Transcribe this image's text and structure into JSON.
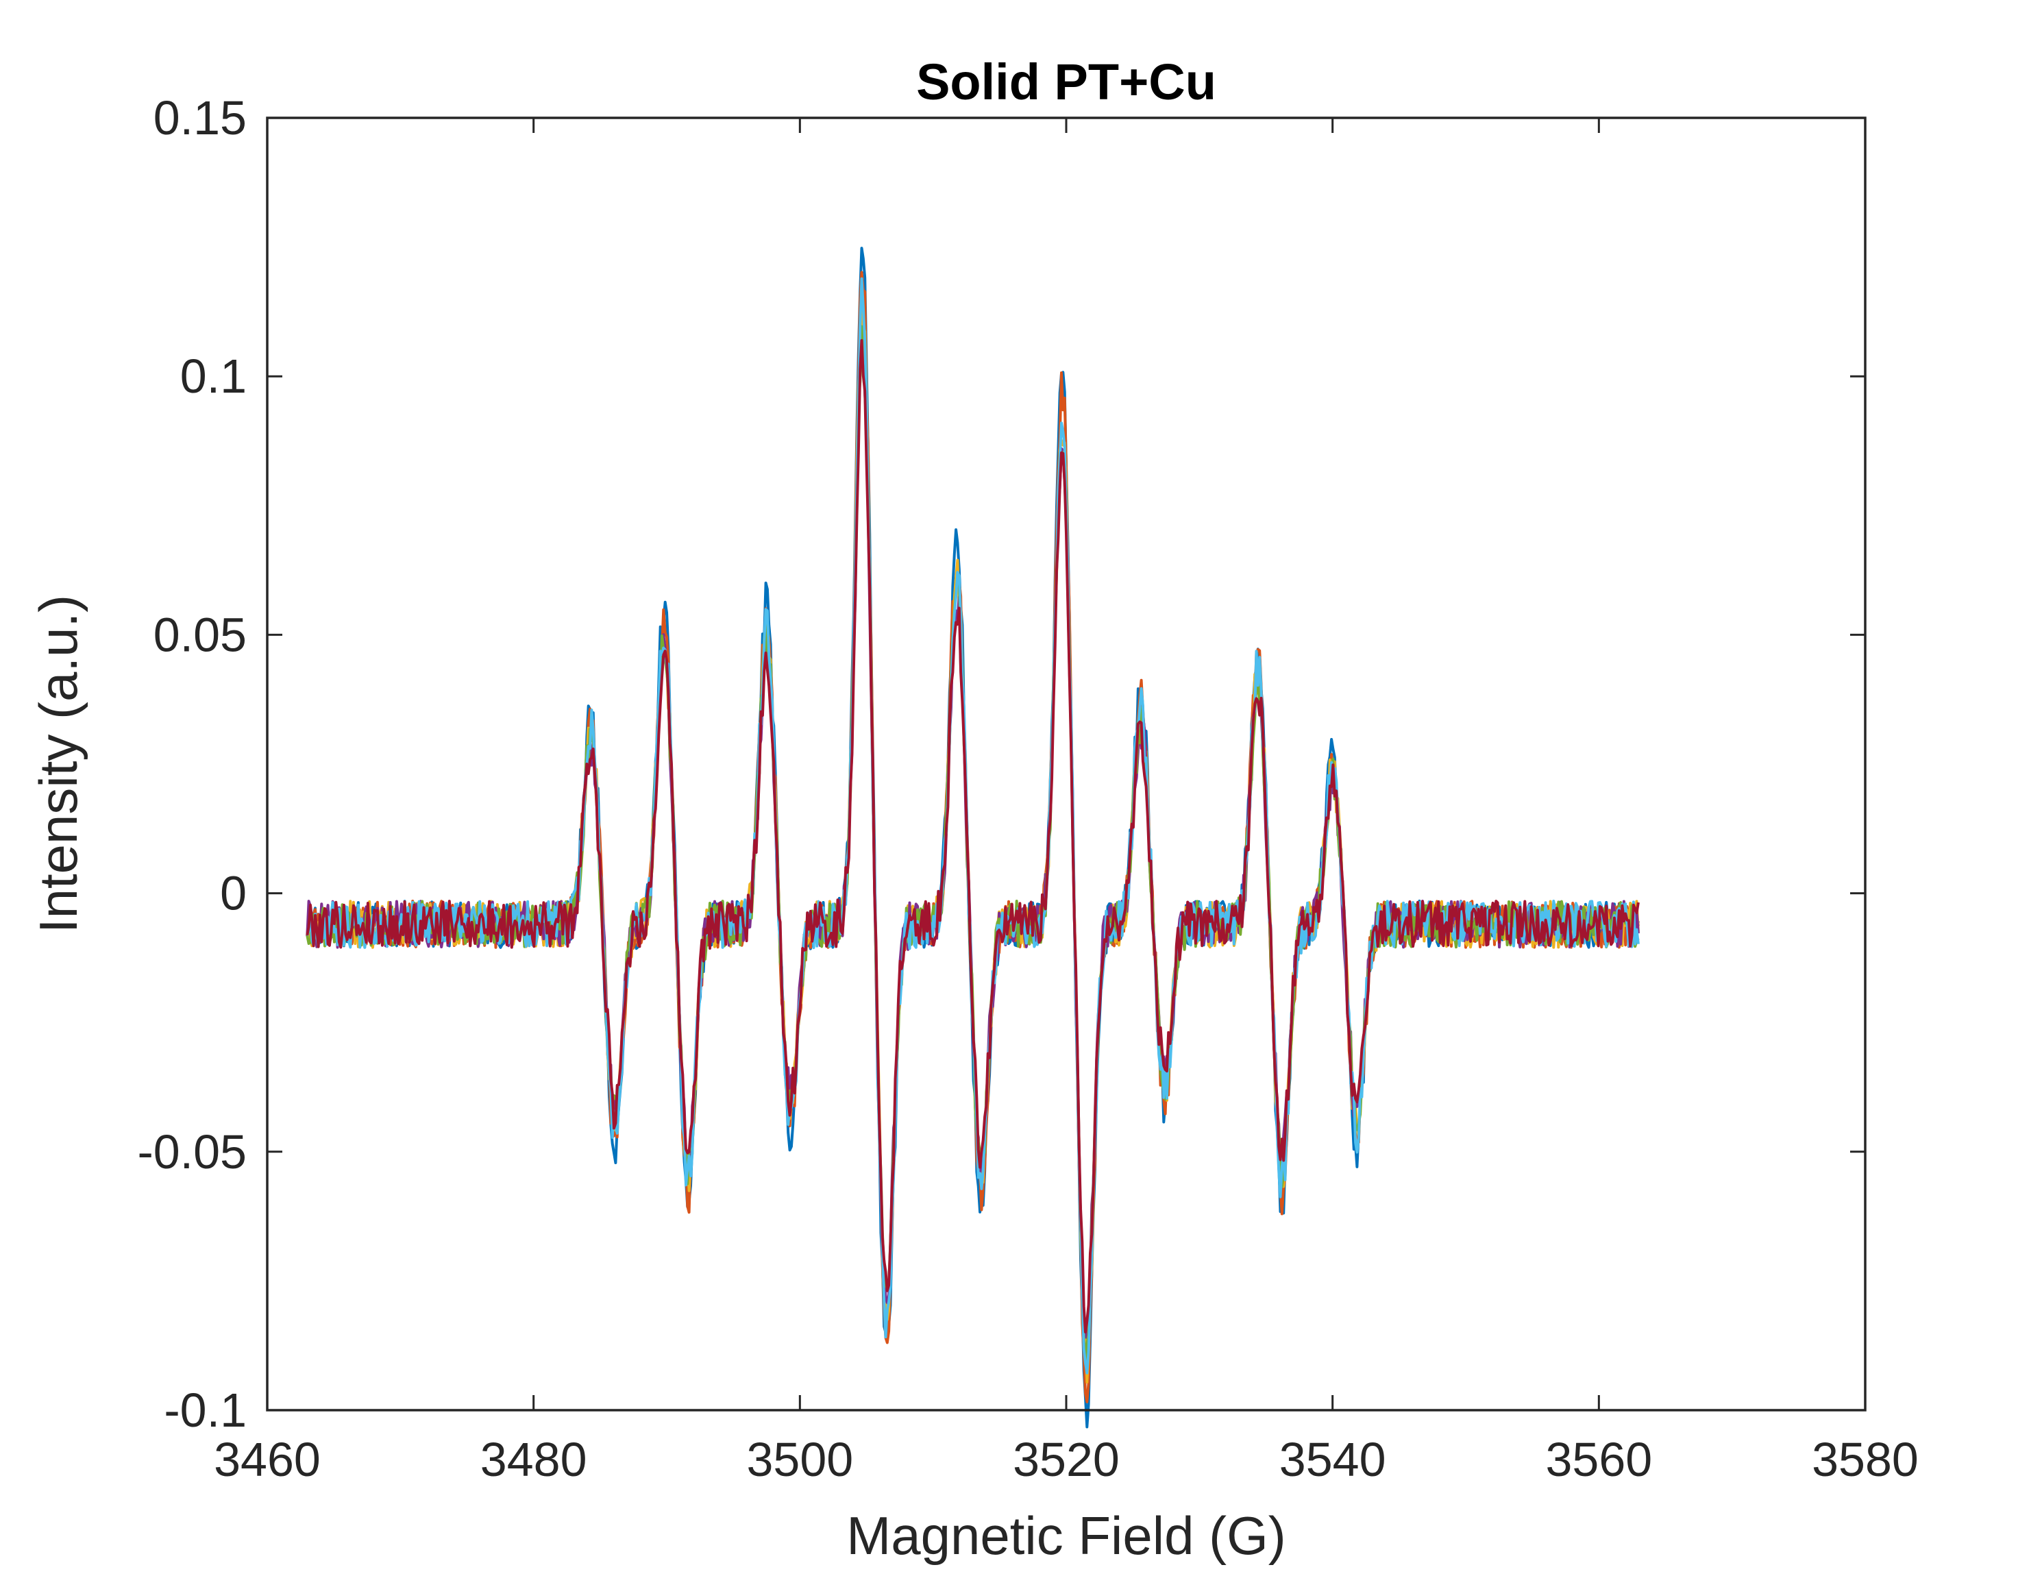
{
  "chart_data": {
    "type": "line",
    "title": "Solid PT+Cu",
    "xlabel": "Magnetic Field (G)",
    "ylabel": "Intensity (a.u.)",
    "xlim": [
      3460,
      3580
    ],
    "ylim": [
      -0.1,
      0.15
    ],
    "xticks": [
      3460,
      3480,
      3500,
      3520,
      3540,
      3560,
      3580
    ],
    "xtick_labels": [
      "3460",
      "3480",
      "3500",
      "3520",
      "3540",
      "3560",
      "3580"
    ],
    "yticks": [
      -0.1,
      -0.05,
      0,
      0.05,
      0.1,
      0.15
    ],
    "ytick_labels": [
      "-0.1",
      "-0.05",
      "0",
      "0.05",
      "0.1",
      "0.15"
    ],
    "grid": false,
    "legend": false,
    "x_range": [
      3463,
      3563
    ],
    "baseline": -0.006,
    "noise_amplitude": 0.0045,
    "peaks": [
      {
        "x": 3485.2,
        "max": 0.038,
        "min": -0.04
      },
      {
        "x": 3490.7,
        "max": 0.057,
        "min": -0.05
      },
      {
        "x": 3498.4,
        "max": 0.058,
        "min": -0.037
      },
      {
        "x": 3505.6,
        "max": 0.122,
        "min": -0.078
      },
      {
        "x": 3512.7,
        "max": 0.068,
        "min": -0.05
      },
      {
        "x": 3520.6,
        "max": 0.1,
        "min": -0.087
      },
      {
        "x": 3526.5,
        "max": 0.042,
        "min": -0.032
      },
      {
        "x": 3535.3,
        "max": 0.05,
        "min": -0.05
      },
      {
        "x": 3540.9,
        "max": 0.03,
        "min": -0.04
      }
    ],
    "series": [
      {
        "color": "#0072BD",
        "scale": 1.08,
        "seed": 11
      },
      {
        "color": "#D95319",
        "scale": 1.04,
        "seed": 23
      },
      {
        "color": "#EDB120",
        "scale": 0.98,
        "seed": 37
      },
      {
        "color": "#7E2F8E",
        "scale": 0.92,
        "seed": 41
      },
      {
        "color": "#77AC30",
        "scale": 0.95,
        "seed": 53
      },
      {
        "color": "#4DBEEE",
        "scale": 1.0,
        "seed": 67
      },
      {
        "color": "#A2142F",
        "scale": 0.9,
        "seed": 79
      }
    ]
  }
}
